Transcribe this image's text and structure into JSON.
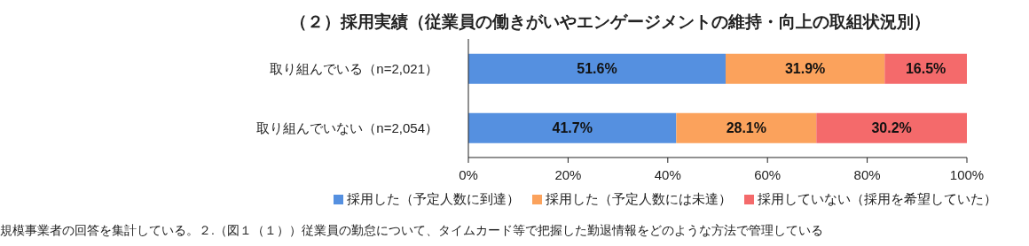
{
  "chart_data": {
    "type": "bar",
    "orientation": "horizontal",
    "stacked": true,
    "title": "（２）採用実績（従業員の働きがいやエンゲージメントの維持・向上の取組状況別）",
    "categories": [
      "取り組んでいる（n=2,021）",
      "取り組んでいない（n=2,054）"
    ],
    "series": [
      {
        "name": "採用した（予定人数に到達）",
        "color": "#5590e0",
        "values": [
          51.6,
          41.7
        ],
        "value_labels": [
          "51.6%",
          "41.7%"
        ]
      },
      {
        "name": "採用した（予定人数には未達）",
        "color": "#fba25c",
        "values": [
          31.9,
          28.1
        ],
        "value_labels": [
          "31.9%",
          "28.1%"
        ]
      },
      {
        "name": "採用していない（採用を希望していた）",
        "color": "#f46a6b",
        "values": [
          16.5,
          30.2
        ],
        "value_labels": [
          "16.5%",
          "30.2%"
        ]
      }
    ],
    "xlim": [
      0,
      100
    ],
    "xticks": [
      {
        "value": 0,
        "label": "0%"
      },
      {
        "value": 20,
        "label": "20%"
      },
      {
        "value": 40,
        "label": "40%"
      },
      {
        "value": 60,
        "label": "60%"
      },
      {
        "value": 80,
        "label": "80%"
      },
      {
        "value": 100,
        "label": "100%"
      }
    ],
    "grid": false,
    "legend": "bottom",
    "annotations": [
      "規模事業者の回答を集計している。２.（図１（１））従業員の勤怠について、タイムカード等で把握した勤退情報をどのような方法で管理している"
    ]
  }
}
